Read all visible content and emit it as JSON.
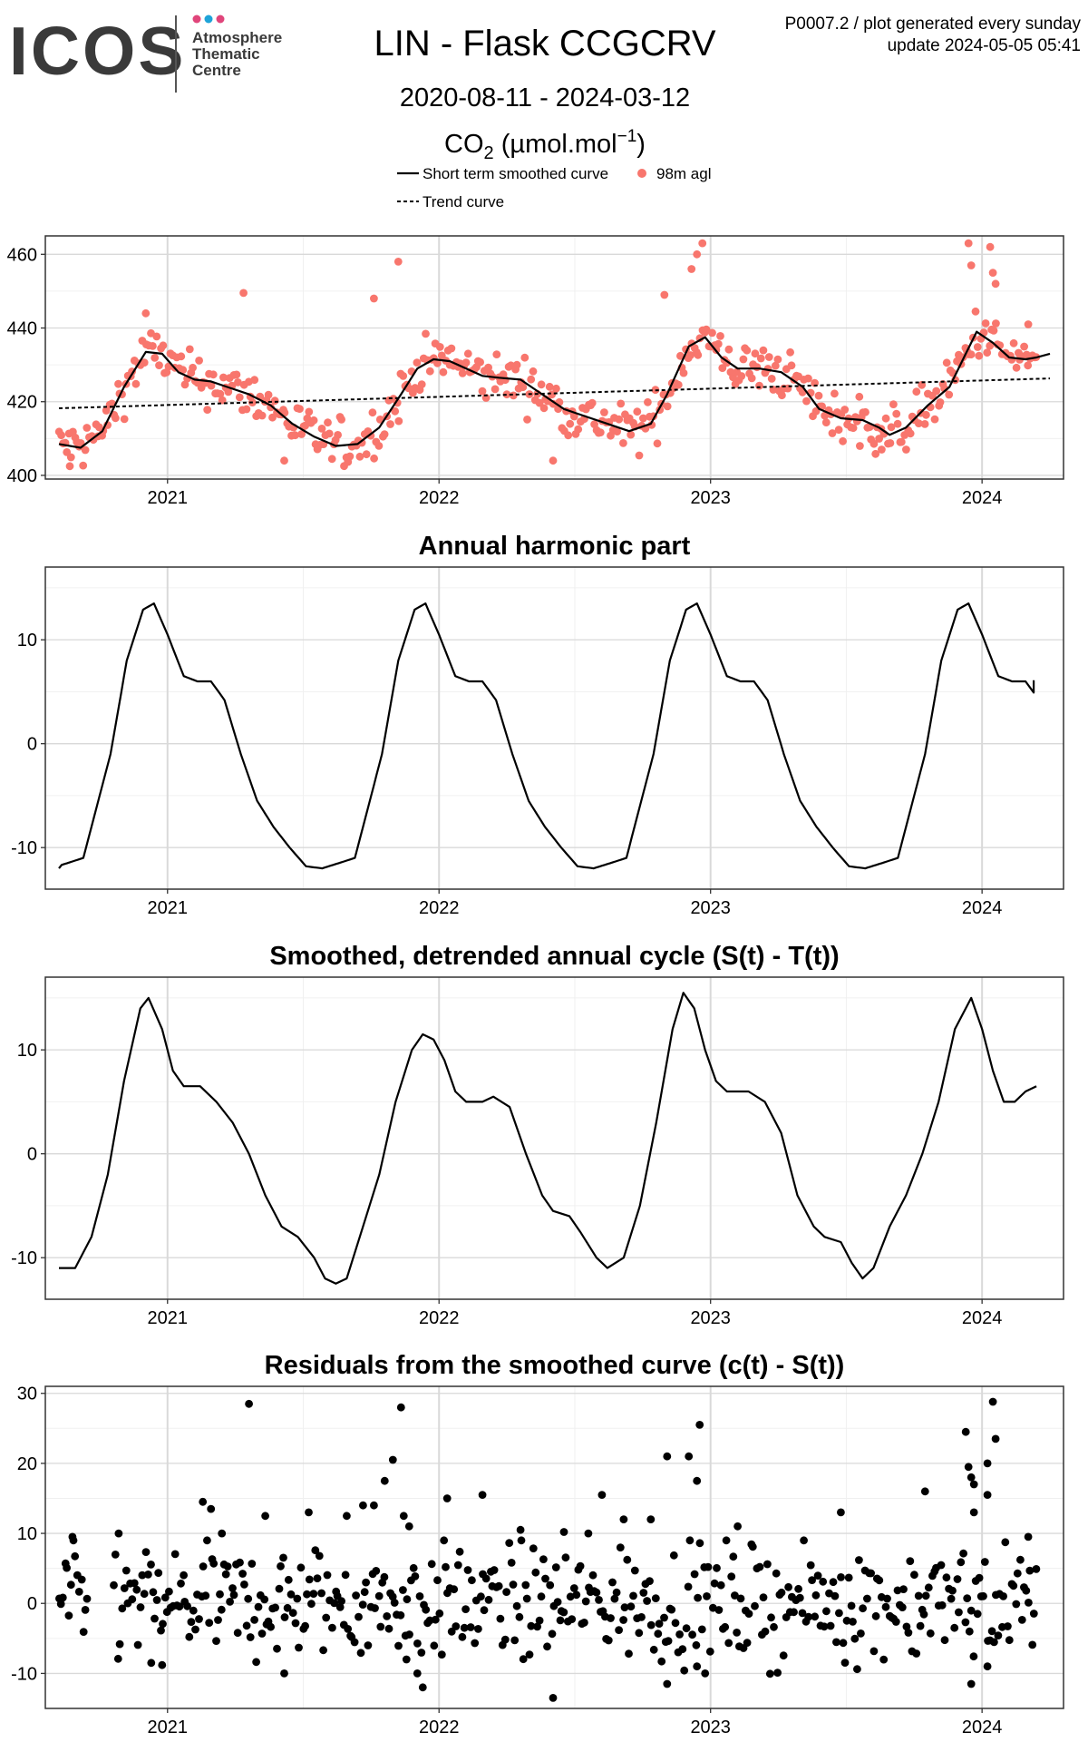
{
  "header": {
    "logo_text": "ICOS",
    "logo_subtitle": [
      "Atmosphere",
      "Thematic",
      "Centre"
    ],
    "logo_dot_colors": [
      "#e0457b",
      "#1ea3d8",
      "#e0457b"
    ],
    "title": "LIN - Flask CCGCRV",
    "date_range": "2020-08-11 - 2024-03-12",
    "gas_main": "CO",
    "gas_sub": "2",
    "unit_open": " (µmol.mol",
    "unit_sup": "−1",
    "unit_close": ")",
    "plot_id": "P0007.2 / plot generated every sunday",
    "update": "update  2024-05-05 05:41"
  },
  "legend": {
    "smoothed": "Short term smoothed curve",
    "points": "98m agl",
    "trend": "Trend curve"
  },
  "colors": {
    "points": "#f8766d",
    "line": "#000000",
    "panel_border": "#333333",
    "grid_major": "#d9d9d9",
    "grid_minor": "#f0f0f0"
  },
  "chart_data": [
    {
      "id": "co2",
      "type": "scatter",
      "title": "",
      "xlim": [
        2020.55,
        2024.3
      ],
      "x_ticks": [
        2021,
        2022,
        2023,
        2024
      ],
      "x_tick_labels": [
        "2021",
        "2022",
        "2023",
        "2024"
      ],
      "ylim": [
        399,
        465
      ],
      "y_ticks": [
        400,
        420,
        440,
        460
      ],
      "y_tick_labels": [
        "400",
        "420",
        "440",
        "460"
      ],
      "smoothed": [
        [
          2020.6,
          408.5
        ],
        [
          2020.68,
          407.5
        ],
        [
          2020.76,
          412
        ],
        [
          2020.84,
          424
        ],
        [
          2020.92,
          433.5
        ],
        [
          2020.98,
          433
        ],
        [
          2021.04,
          428
        ],
        [
          2021.1,
          426
        ],
        [
          2021.16,
          425.5
        ],
        [
          2021.22,
          424
        ],
        [
          2021.3,
          422
        ],
        [
          2021.38,
          419
        ],
        [
          2021.46,
          414
        ],
        [
          2021.54,
          410.5
        ],
        [
          2021.62,
          408
        ],
        [
          2021.7,
          408.5
        ],
        [
          2021.78,
          413
        ],
        [
          2021.86,
          422
        ],
        [
          2021.92,
          429
        ],
        [
          2021.98,
          431.5
        ],
        [
          2022.04,
          431
        ],
        [
          2022.1,
          429
        ],
        [
          2022.16,
          427
        ],
        [
          2022.22,
          426.5
        ],
        [
          2022.3,
          426
        ],
        [
          2022.38,
          422
        ],
        [
          2022.46,
          418
        ],
        [
          2022.54,
          416
        ],
        [
          2022.62,
          414
        ],
        [
          2022.7,
          412
        ],
        [
          2022.78,
          414
        ],
        [
          2022.84,
          422
        ],
        [
          2022.92,
          435
        ],
        [
          2022.98,
          437.5
        ],
        [
          2023.04,
          432
        ],
        [
          2023.1,
          429
        ],
        [
          2023.18,
          429
        ],
        [
          2023.26,
          428
        ],
        [
          2023.34,
          424
        ],
        [
          2023.4,
          418
        ],
        [
          2023.48,
          415.5
        ],
        [
          2023.56,
          415
        ],
        [
          2023.62,
          413
        ],
        [
          2023.66,
          411
        ],
        [
          2023.72,
          413
        ],
        [
          2023.8,
          419
        ],
        [
          2023.88,
          424
        ],
        [
          2023.94,
          433
        ],
        [
          2023.98,
          439
        ],
        [
          2024.04,
          436
        ],
        [
          2024.1,
          432
        ],
        [
          2024.16,
          431.5
        ],
        [
          2024.2,
          432
        ],
        [
          2024.25,
          433
        ]
      ],
      "trend": [
        [
          2020.6,
          418.2
        ],
        [
          2024.25,
          426.3
        ]
      ]
    },
    {
      "id": "harmonic",
      "type": "line",
      "title": "Annual harmonic part",
      "xlim": [
        2020.55,
        2024.3
      ],
      "x_ticks": [
        2021,
        2022,
        2023,
        2024
      ],
      "x_tick_labels": [
        "2021",
        "2022",
        "2023",
        "2024"
      ],
      "ylim": [
        -14,
        17
      ],
      "y_ticks": [
        -10,
        0,
        10
      ],
      "y_tick_labels": [
        "-10",
        "0",
        "10"
      ],
      "cycle": [
        [
          0,
          -11
        ],
        [
          0.05,
          -6
        ],
        [
          0.1,
          -1
        ],
        [
          0.16,
          8
        ],
        [
          0.22,
          12.9
        ],
        [
          0.26,
          13.5
        ],
        [
          0.31,
          10.5
        ],
        [
          0.37,
          6.5
        ],
        [
          0.42,
          6
        ],
        [
          0.47,
          6
        ],
        [
          0.52,
          4.2
        ],
        [
          0.58,
          -1
        ],
        [
          0.64,
          -5.5
        ],
        [
          0.7,
          -8
        ],
        [
          0.76,
          -10
        ],
        [
          0.82,
          -11.8
        ],
        [
          0.88,
          -12
        ],
        [
          0.94,
          -11.5
        ],
        [
          1.0,
          -11
        ]
      ],
      "cycle_origin": 2020.69,
      "start": 2020.6,
      "end": 2024.19,
      "start_value": -12,
      "end_value": 6.1
    },
    {
      "id": "detrended",
      "type": "line",
      "title": "Smoothed, detrended annual cycle (S(t) - T(t))",
      "xlim": [
        2020.55,
        2024.3
      ],
      "x_ticks": [
        2021,
        2022,
        2023,
        2024
      ],
      "x_tick_labels": [
        "2021",
        "2022",
        "2023",
        "2024"
      ],
      "ylim": [
        -14,
        17
      ],
      "y_ticks": [
        -10,
        0,
        10
      ],
      "y_tick_labels": [
        "-10",
        "0",
        "10"
      ],
      "points": [
        [
          2020.6,
          -11
        ],
        [
          2020.66,
          -11
        ],
        [
          2020.72,
          -8
        ],
        [
          2020.78,
          -2
        ],
        [
          2020.84,
          7
        ],
        [
          2020.9,
          14
        ],
        [
          2020.93,
          15
        ],
        [
          2020.98,
          12
        ],
        [
          2021.02,
          8
        ],
        [
          2021.06,
          6.5
        ],
        [
          2021.12,
          6.5
        ],
        [
          2021.18,
          5
        ],
        [
          2021.24,
          3
        ],
        [
          2021.3,
          0
        ],
        [
          2021.36,
          -4
        ],
        [
          2021.42,
          -7
        ],
        [
          2021.48,
          -8
        ],
        [
          2021.54,
          -10
        ],
        [
          2021.58,
          -12
        ],
        [
          2021.62,
          -12.5
        ],
        [
          2021.66,
          -12
        ],
        [
          2021.72,
          -7
        ],
        [
          2021.78,
          -2
        ],
        [
          2021.84,
          5
        ],
        [
          2021.9,
          10
        ],
        [
          2021.94,
          11.5
        ],
        [
          2021.98,
          11
        ],
        [
          2022.02,
          9
        ],
        [
          2022.06,
          6
        ],
        [
          2022.1,
          5
        ],
        [
          2022.16,
          5
        ],
        [
          2022.2,
          5.5
        ],
        [
          2022.26,
          4.5
        ],
        [
          2022.32,
          0
        ],
        [
          2022.38,
          -4
        ],
        [
          2022.42,
          -5.5
        ],
        [
          2022.48,
          -6
        ],
        [
          2022.52,
          -7.5
        ],
        [
          2022.58,
          -10
        ],
        [
          2022.62,
          -11
        ],
        [
          2022.68,
          -10
        ],
        [
          2022.74,
          -5
        ],
        [
          2022.8,
          3
        ],
        [
          2022.86,
          12
        ],
        [
          2022.9,
          15.5
        ],
        [
          2022.94,
          14
        ],
        [
          2022.98,
          10
        ],
        [
          2023.02,
          7
        ],
        [
          2023.06,
          6
        ],
        [
          2023.14,
          6
        ],
        [
          2023.2,
          5
        ],
        [
          2023.26,
          2
        ],
        [
          2023.32,
          -4
        ],
        [
          2023.38,
          -7
        ],
        [
          2023.42,
          -8
        ],
        [
          2023.48,
          -8.5
        ],
        [
          2023.52,
          -10.5
        ],
        [
          2023.56,
          -12
        ],
        [
          2023.6,
          -11
        ],
        [
          2023.66,
          -7
        ],
        [
          2023.72,
          -4
        ],
        [
          2023.78,
          0
        ],
        [
          2023.84,
          5
        ],
        [
          2023.9,
          12
        ],
        [
          2023.96,
          15
        ],
        [
          2024.0,
          12
        ],
        [
          2024.04,
          8
        ],
        [
          2024.08,
          5
        ],
        [
          2024.12,
          5
        ],
        [
          2024.16,
          6
        ],
        [
          2024.2,
          6.5
        ]
      ]
    },
    {
      "id": "residuals",
      "type": "scatter",
      "title": "Residuals from the smoothed curve (c(t) - S(t))",
      "xlim": [
        2020.55,
        2024.3
      ],
      "x_ticks": [
        2021,
        2022,
        2023,
        2024
      ],
      "x_tick_labels": [
        "2021",
        "2022",
        "2023",
        "2024"
      ],
      "ylim": [
        -15,
        31
      ],
      "y_ticks": [
        -10,
        0,
        10,
        20,
        30
      ],
      "y_tick_labels": [
        "-10",
        "0",
        "10",
        "20",
        "30"
      ],
      "outliers": [
        [
          2021.3,
          28.5
        ],
        [
          2021.86,
          28
        ],
        [
          2021.83,
          20.5
        ],
        [
          2021.8,
          17.5
        ],
        [
          2021.76,
          14
        ],
        [
          2021.72,
          14
        ],
        [
          2021.66,
          12.5
        ],
        [
          2021.52,
          13
        ],
        [
          2021.36,
          12.5
        ],
        [
          2021.13,
          14.5
        ],
        [
          2021.16,
          13.5
        ],
        [
          2021.2,
          10
        ],
        [
          2021.87,
          12.5
        ],
        [
          2021.89,
          11
        ],
        [
          2022.03,
          15
        ],
        [
          2022.16,
          15.5
        ],
        [
          2022.3,
          10.5
        ],
        [
          2022.46,
          10.2
        ],
        [
          2022.55,
          10
        ],
        [
          2022.6,
          15.5
        ],
        [
          2022.68,
          12
        ],
        [
          2022.78,
          12
        ],
        [
          2022.84,
          21
        ],
        [
          2022.92,
          21
        ],
        [
          2022.95,
          17.5
        ],
        [
          2022.96,
          25.5
        ],
        [
          2023.1,
          11
        ],
        [
          2023.48,
          13
        ],
        [
          2023.79,
          16
        ],
        [
          2023.94,
          24.5
        ],
        [
          2023.95,
          19.5
        ],
        [
          2023.96,
          18
        ],
        [
          2023.97,
          17
        ],
        [
          2023.97,
          13
        ],
        [
          2024.02,
          20
        ],
        [
          2024.02,
          15.5
        ],
        [
          2024.04,
          28.8
        ],
        [
          2024.05,
          23.5
        ],
        [
          2024.17,
          9.5
        ],
        [
          2020.82,
          10
        ],
        [
          2020.65,
          9.5
        ],
        [
          2022.42,
          -13.5
        ],
        [
          2021.94,
          -12
        ],
        [
          2021.92,
          -10
        ],
        [
          2021.88,
          -8
        ],
        [
          2021.43,
          -10
        ],
        [
          2020.94,
          -8.5
        ],
        [
          2020.98,
          -8.8
        ],
        [
          2022.84,
          -11.5
        ],
        [
          2022.98,
          -10
        ],
        [
          2022.95,
          -9
        ],
        [
          2023.96,
          -11.5
        ],
        [
          2024.02,
          -9
        ]
      ]
    }
  ]
}
